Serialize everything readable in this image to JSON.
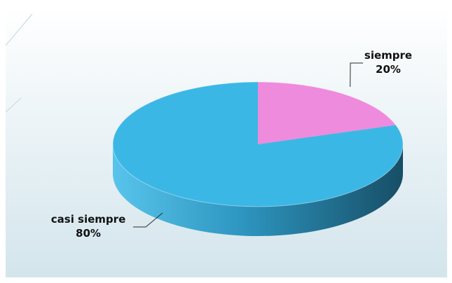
{
  "chart_data": {
    "type": "pie",
    "title": "",
    "slices": [
      {
        "label": "siempre",
        "value": 20,
        "display": "20%",
        "color": "#ee8bdc"
      },
      {
        "label": "casi siempre",
        "value": 80,
        "display": "80%",
        "color": "#3bb7e6"
      }
    ],
    "style": "3d",
    "legend": "none"
  },
  "colors": {
    "background_top": "#ffffff",
    "background_bottom": "#d3e5ec",
    "side_light": "#3da9d2",
    "side_dark": "#174e66"
  }
}
